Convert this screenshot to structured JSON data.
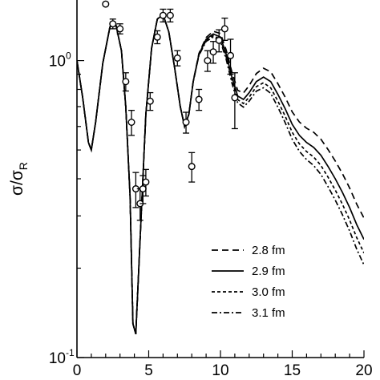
{
  "chart_data": {
    "type": "line",
    "title": "",
    "xlabel": "",
    "ylabel": "σ/σ",
    "ylabel_subscript": "R",
    "x_range": [
      0,
      20
    ],
    "y_range": [
      0.1,
      1.6
    ],
    "y_scale": "log",
    "grid": false,
    "legend_position": "lower-right",
    "x_ticks": [
      {
        "value": 0,
        "label": "0"
      },
      {
        "value": 5,
        "label": "5"
      },
      {
        "value": 10,
        "label": "10"
      },
      {
        "value": 15,
        "label": "15"
      },
      {
        "value": 20,
        "label": "20"
      }
    ],
    "y_ticks": [
      {
        "value": 1,
        "label": "10",
        "exp": "0"
      },
      {
        "value": 0.1,
        "label": "10",
        "exp": "-1"
      }
    ],
    "base_curve": {
      "x": [
        0,
        0.4,
        0.8,
        1.0,
        1.3,
        1.8,
        2.3,
        2.7,
        3.1,
        3.4,
        3.7,
        3.9,
        4.1,
        4.4,
        4.8,
        5.2,
        5.6,
        6.0,
        6.4,
        6.8,
        7.2,
        7.5,
        7.8,
        8.1,
        8.5,
        9.0,
        9.5,
        10.0,
        10.4,
        10.8,
        11.2,
        11.6,
        12.0,
        12.5,
        13.0,
        13.5,
        14.0,
        14.5,
        15.0,
        15.5,
        16.0,
        16.5,
        17.0,
        17.5,
        18.0,
        18.5,
        19.0,
        19.5,
        20.0
      ],
      "y": [
        1.0,
        0.75,
        0.53,
        0.5,
        0.62,
        0.98,
        1.3,
        1.33,
        1.08,
        0.7,
        0.35,
        0.13,
        0.12,
        0.25,
        0.66,
        1.1,
        1.38,
        1.43,
        1.25,
        0.95,
        0.7,
        0.6,
        0.66,
        0.85,
        1.05,
        1.18,
        1.23,
        1.2,
        1.05,
        0.88,
        0.76,
        0.74,
        0.78,
        0.85,
        0.88,
        0.85,
        0.77,
        0.69,
        0.61,
        0.56,
        0.53,
        0.51,
        0.48,
        0.44,
        0.4,
        0.36,
        0.32,
        0.28,
        0.25
      ]
    },
    "series": [
      {
        "name": "2.8 fm",
        "dash": "8,5",
        "ratio_at_end": 1.18
      },
      {
        "name": "2.9 fm",
        "dash": "",
        "ratio_at_end": 1.0
      },
      {
        "name": "3.0 fm",
        "dash": "4,3",
        "ratio_at_end": 0.9
      },
      {
        "name": "3.1 fm",
        "dash": "7,3,2,3",
        "ratio_at_end": 0.82
      }
    ],
    "data_points": [
      {
        "x": 2.0,
        "y": 1.55,
        "err": 0.0
      },
      {
        "x": 2.5,
        "y": 1.33,
        "err": 0.05
      },
      {
        "x": 3.0,
        "y": 1.28,
        "err": 0.05
      },
      {
        "x": 3.4,
        "y": 0.85,
        "err": 0.06
      },
      {
        "x": 3.8,
        "y": 0.62,
        "err": 0.06
      },
      {
        "x": 4.1,
        "y": 0.37,
        "err": 0.05
      },
      {
        "x": 4.4,
        "y": 0.33,
        "err": 0.04
      },
      {
        "x": 4.6,
        "y": 0.37,
        "err": 0.04
      },
      {
        "x": 4.8,
        "y": 0.39,
        "err": 0.04
      },
      {
        "x": 5.1,
        "y": 0.73,
        "err": 0.05
      },
      {
        "x": 5.6,
        "y": 1.2,
        "err": 0.06
      },
      {
        "x": 6.0,
        "y": 1.42,
        "err": 0.07
      },
      {
        "x": 6.5,
        "y": 1.42,
        "err": 0.07
      },
      {
        "x": 7.0,
        "y": 1.02,
        "err": 0.06
      },
      {
        "x": 7.6,
        "y": 0.62,
        "err": 0.05
      },
      {
        "x": 8.0,
        "y": 0.44,
        "err": 0.05
      },
      {
        "x": 8.5,
        "y": 0.74,
        "err": 0.06
      },
      {
        "x": 9.1,
        "y": 1.0,
        "err": 0.08
      },
      {
        "x": 9.5,
        "y": 1.07,
        "err": 0.09
      },
      {
        "x": 9.9,
        "y": 1.17,
        "err": 0.1
      },
      {
        "x": 10.3,
        "y": 1.28,
        "err": 0.11
      },
      {
        "x": 10.7,
        "y": 1.04,
        "err": 0.14
      },
      {
        "x": 11.0,
        "y": 0.75,
        "err": 0.16
      }
    ]
  }
}
